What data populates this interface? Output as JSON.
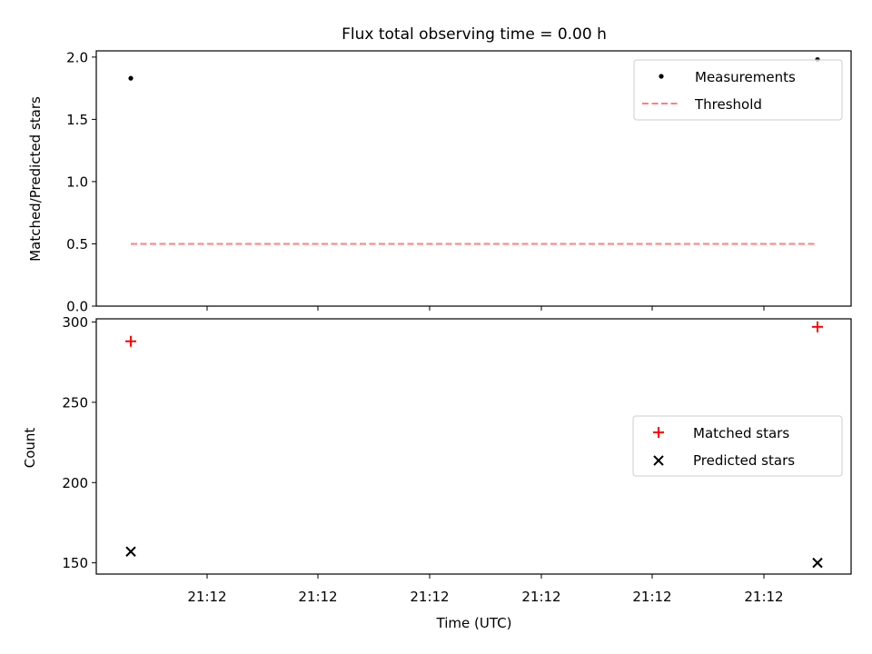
{
  "title": "Flux total observing time = 0.00 h",
  "chart_data": [
    {
      "type": "scatter",
      "title": "Flux total observing time = 0.00 h",
      "xlabel": "",
      "ylabel": "Matched/Predicted stars",
      "ylim": [
        0,
        2.05
      ],
      "yticks": [
        "0.0",
        "0.5",
        "1.0",
        "1.5",
        "2.0"
      ],
      "ytick_values": [
        0,
        0.5,
        1.0,
        1.5,
        2.0
      ],
      "legend_position": "upper-right",
      "series": [
        {
          "name": "Measurements",
          "kind": "points",
          "marker": "dot",
          "color": "#000000",
          "x": [
            0,
            1
          ],
          "values": [
            1.83,
            1.98
          ]
        },
        {
          "name": "Threshold",
          "kind": "dashed-line",
          "color": "#ff7f7f",
          "x": [
            0,
            1
          ],
          "values": [
            0.5,
            0.5
          ]
        }
      ]
    },
    {
      "type": "scatter",
      "xlabel": "Time (UTC)",
      "ylabel": "Count",
      "ylim": [
        143,
        302
      ],
      "yticks": [
        "150",
        "200",
        "250",
        "300"
      ],
      "ytick_values": [
        150,
        200,
        250,
        300
      ],
      "xticks": [
        "21:12",
        "21:12",
        "21:12",
        "21:12",
        "21:12",
        "21:12"
      ],
      "legend_position": "center-right",
      "series": [
        {
          "name": "Matched stars",
          "marker": "plus",
          "color": "#ff0000",
          "x": [
            0,
            1
          ],
          "values": [
            288,
            297
          ]
        },
        {
          "name": "Predicted stars",
          "marker": "x",
          "color": "#000000",
          "x": [
            0,
            1
          ],
          "values": [
            157,
            150
          ]
        }
      ]
    }
  ]
}
